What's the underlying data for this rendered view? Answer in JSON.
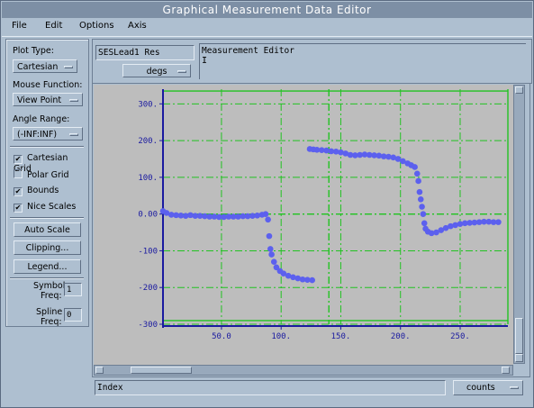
{
  "window": {
    "title": "Graphical Measurement Data Editor"
  },
  "menu": {
    "file": "File",
    "edit": "Edit",
    "options": "Options",
    "axis": "Axis"
  },
  "left_panel": {
    "plot_type_label": "Plot Type:",
    "plot_type_value": "Cartesian",
    "mouse_function_label": "Mouse Function:",
    "mouse_function_value": "View Point",
    "angle_range_label": "Angle Range:",
    "angle_range_value": "(-INF:INF)",
    "checks": [
      {
        "label": "Cartesian Grid",
        "mark": "✔"
      },
      {
        "label": "Polar Grid",
        "mark": ""
      },
      {
        "label": "Bounds",
        "mark": "✔"
      },
      {
        "label": "Nice Scales",
        "mark": "✔"
      }
    ],
    "auto_scale": "Auto Scale",
    "clipping": "Clipping...",
    "legend": "Legend...",
    "symbol_label_1": "Symbol",
    "symbol_label_2": "Freq:",
    "symbol_value": "1",
    "spline_label_1": "Spline",
    "spline_label_2": "Freq:",
    "spline_value": "0"
  },
  "top_panel": {
    "dataset_name": "SESLead1 Res",
    "units": "degs",
    "editor_title": "Measurement Editor",
    "cursor": "I"
  },
  "bottom": {
    "x_field": "Index",
    "x_units": "counts"
  },
  "colors": {
    "points": "#5c60ee",
    "grid": "#22c322",
    "plot_bg": "#bdbdbd",
    "axis": "#1a1aa0"
  },
  "chart_data": {
    "type": "scatter",
    "xlim": [
      1,
      290
    ],
    "ylim": [
      -300,
      340
    ],
    "x_ticks": [
      50,
      100,
      150,
      200,
      250
    ],
    "x_tick_labels": [
      "50.0",
      "100.",
      "150.",
      "200.",
      "250."
    ],
    "y_ticks": [
      300,
      200,
      100,
      0,
      -100,
      -200,
      -300
    ],
    "y_tick_labels": [
      "300.",
      "200.",
      "100.",
      "0.00",
      "-100",
      "-200",
      "-300"
    ],
    "grid": true,
    "points": [
      [
        1,
        8
      ],
      [
        4,
        3
      ],
      [
        8,
        -2
      ],
      [
        12,
        -3
      ],
      [
        16,
        -4
      ],
      [
        20,
        -5
      ],
      [
        24,
        -3
      ],
      [
        28,
        -5
      ],
      [
        32,
        -5
      ],
      [
        36,
        -6
      ],
      [
        40,
        -7
      ],
      [
        44,
        -7
      ],
      [
        48,
        -8
      ],
      [
        52,
        -8
      ],
      [
        56,
        -7
      ],
      [
        60,
        -7
      ],
      [
        64,
        -7
      ],
      [
        68,
        -6
      ],
      [
        72,
        -6
      ],
      [
        76,
        -5
      ],
      [
        80,
        -4
      ],
      [
        84,
        -2
      ],
      [
        87,
        0
      ],
      [
        89,
        -15
      ],
      [
        90,
        -60
      ],
      [
        91,
        -95
      ],
      [
        92,
        -110
      ],
      [
        94,
        -130
      ],
      [
        96,
        -145
      ],
      [
        99,
        -155
      ],
      [
        102,
        -162
      ],
      [
        106,
        -168
      ],
      [
        110,
        -172
      ],
      [
        114,
        -175
      ],
      [
        118,
        -178
      ],
      [
        122,
        -179
      ],
      [
        126,
        -180
      ],
      [
        124,
        177
      ],
      [
        127,
        176
      ],
      [
        130,
        175
      ],
      [
        134,
        174
      ],
      [
        138,
        173
      ],
      [
        142,
        171
      ],
      [
        146,
        170
      ],
      [
        150,
        168
      ],
      [
        154,
        165
      ],
      [
        158,
        161
      ],
      [
        162,
        160
      ],
      [
        166,
        161
      ],
      [
        170,
        162
      ],
      [
        174,
        161
      ],
      [
        178,
        160
      ],
      [
        182,
        159
      ],
      [
        186,
        157
      ],
      [
        190,
        156
      ],
      [
        194,
        154
      ],
      [
        198,
        150
      ],
      [
        202,
        144
      ],
      [
        206,
        138
      ],
      [
        209,
        133
      ],
      [
        212,
        128
      ],
      [
        214,
        110
      ],
      [
        215,
        90
      ],
      [
        216,
        60
      ],
      [
        217,
        40
      ],
      [
        218,
        20
      ],
      [
        219,
        0
      ],
      [
        220,
        -25
      ],
      [
        221,
        -40
      ],
      [
        223,
        -48
      ],
      [
        226,
        -52
      ],
      [
        230,
        -50
      ],
      [
        234,
        -44
      ],
      [
        238,
        -38
      ],
      [
        242,
        -33
      ],
      [
        246,
        -30
      ],
      [
        250,
        -27
      ],
      [
        254,
        -25
      ],
      [
        258,
        -24
      ],
      [
        262,
        -23
      ],
      [
        266,
        -22
      ],
      [
        270,
        -21
      ],
      [
        274,
        -21
      ],
      [
        278,
        -22
      ],
      [
        282,
        -22
      ]
    ],
    "reference_lines": {
      "h": [
        0,
        335,
        -290
      ],
      "v": [
        140,
        290
      ]
    }
  }
}
